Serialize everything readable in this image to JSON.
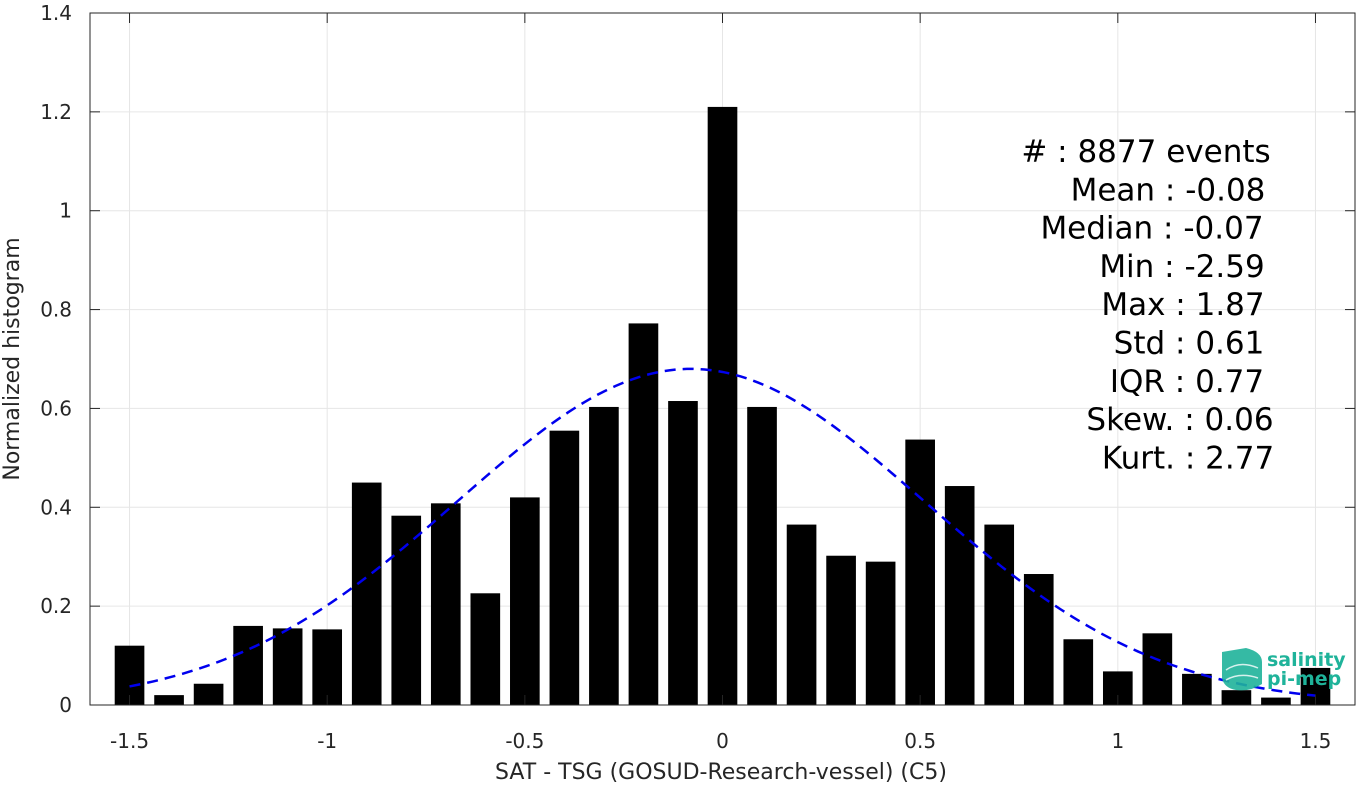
{
  "chart_data": {
    "type": "bar",
    "xlabel": "SAT - TSG (GOSUD-Research-vessel) (C5)",
    "ylabel": "Normalized histogram",
    "xlim": [
      -1.6,
      1.6
    ],
    "ylim": [
      0,
      1.4
    ],
    "xticks": [
      -1.5,
      -1,
      -0.5,
      0,
      0.5,
      1,
      1.5
    ],
    "xtick_labels": [
      "-1.5",
      "-1",
      "-0.5",
      "0",
      "0.5",
      "1",
      "1.5"
    ],
    "yticks": [
      0,
      0.2,
      0.4,
      0.6,
      0.8,
      1,
      1.2,
      1.4
    ],
    "ytick_labels": [
      "0",
      "0.2",
      "0.4",
      "0.6",
      "0.8",
      "1",
      "1.2",
      "1.4"
    ],
    "grid": true,
    "bar_color": "#000000",
    "bin_width": 0.1,
    "bins": [
      -1.5,
      -1.4,
      -1.3,
      -1.2,
      -1.1,
      -1.0,
      -0.9,
      -0.8,
      -0.7,
      -0.6,
      -0.5,
      -0.4,
      -0.3,
      -0.2,
      -0.1,
      0.0,
      0.1,
      0.2,
      0.3,
      0.4,
      0.5,
      0.6,
      0.7,
      0.8,
      0.9,
      1.0,
      1.1,
      1.2,
      1.3,
      1.4,
      1.5
    ],
    "values": [
      0.12,
      0.02,
      0.043,
      0.16,
      0.155,
      0.153,
      0.45,
      0.383,
      0.408,
      0.226,
      0.42,
      0.555,
      0.603,
      0.772,
      0.615,
      1.21,
      0.603,
      0.365,
      0.302,
      0.29,
      0.537,
      0.443,
      0.365,
      0.265,
      0.133,
      0.068,
      0.145,
      0.063,
      0.03,
      0.015,
      0.075
    ],
    "fit": {
      "type": "gaussian",
      "mean": -0.08,
      "std": 0.59,
      "peak": 0.68,
      "color": "#0000ee",
      "style": "dashed",
      "x_range": [
        -1.5,
        1.5
      ]
    },
    "stats": [
      "#  : 8877 events",
      "Mean : -0.08",
      "Median : -0.07",
      "Min : -2.59",
      "Max : 1.87",
      "Std : 0.61",
      "IQR : 0.77",
      "Skew. : 0.06",
      "Kurt. : 2.77"
    ]
  },
  "logo": {
    "line1": "salinity",
    "line2": "pi-mep",
    "color": "#1fb39a"
  }
}
